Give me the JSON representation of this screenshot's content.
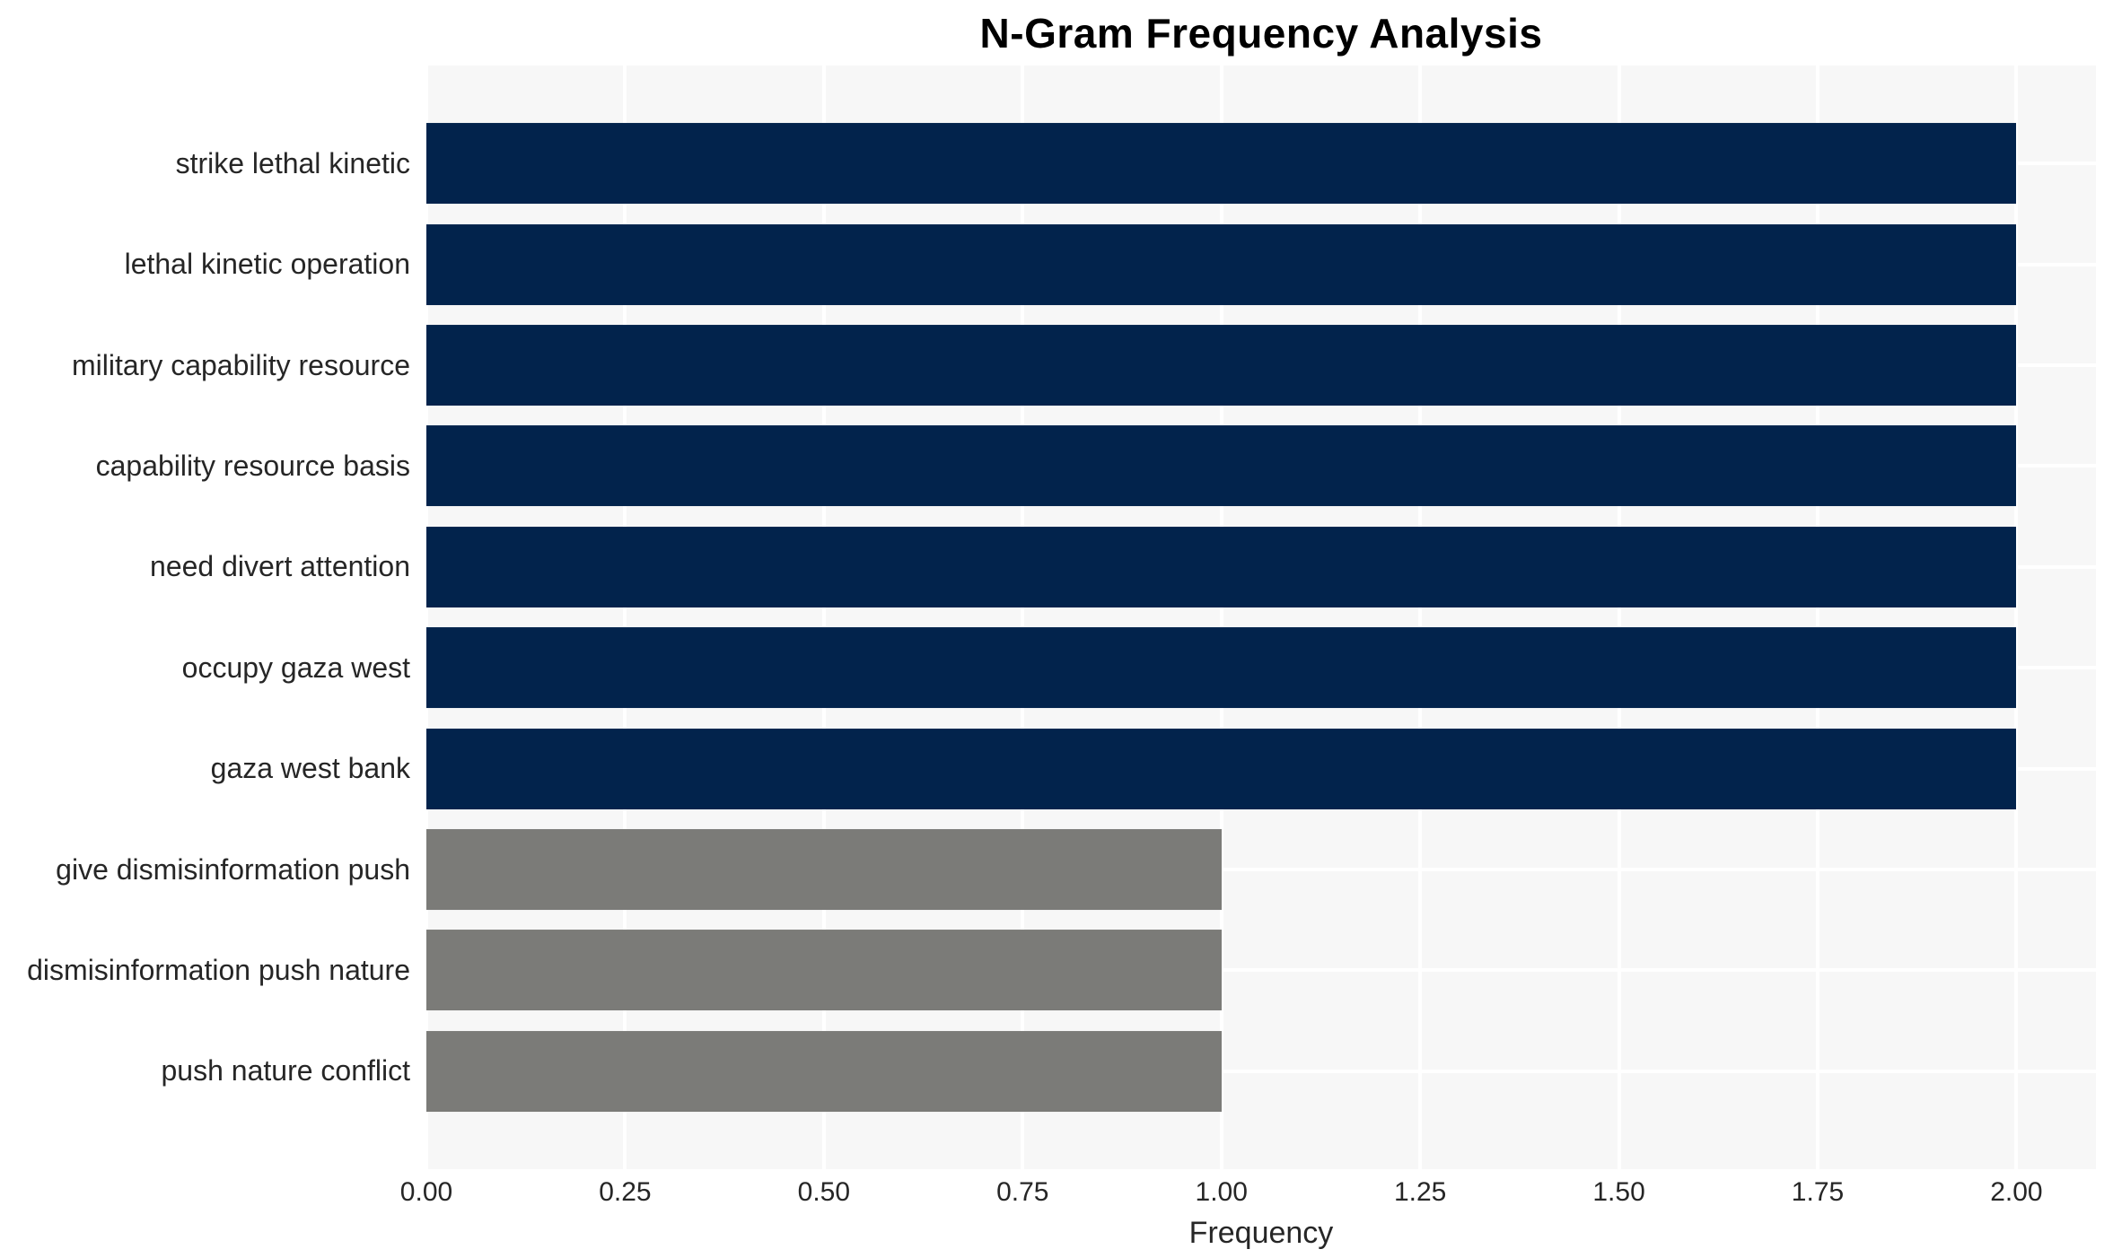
{
  "title": "N-Gram Frequency Analysis",
  "xlabel": "Frequency",
  "chart_data": {
    "type": "bar",
    "orientation": "horizontal",
    "title": "N-Gram Frequency Analysis",
    "xlabel": "Frequency",
    "ylabel": "",
    "categories": [
      "strike lethal kinetic",
      "lethal kinetic operation",
      "military capability resource",
      "capability resource basis",
      "need divert attention",
      "occupy gaza west",
      "gaza west bank",
      "give dismisinformation push",
      "dismisinformation push nature",
      "push nature conflict"
    ],
    "values": [
      2,
      2,
      2,
      2,
      2,
      2,
      2,
      1,
      1,
      1
    ],
    "xlim": [
      0,
      2.1
    ],
    "xticks": [
      "0.00",
      "0.25",
      "0.50",
      "0.75",
      "1.00",
      "1.25",
      "1.50",
      "1.75",
      "2.00"
    ],
    "xtick_values": [
      0,
      0.25,
      0.5,
      0.75,
      1.0,
      1.25,
      1.5,
      1.75,
      2.0
    ],
    "grid": true,
    "legend": false,
    "colors": {
      "bar_value_2": "#02234c",
      "bar_value_1": "#7b7b78",
      "plot_background": "#f7f7f7",
      "grid_line": "#ffffff",
      "tick_text": "#262626",
      "title_text": "#000000"
    }
  }
}
